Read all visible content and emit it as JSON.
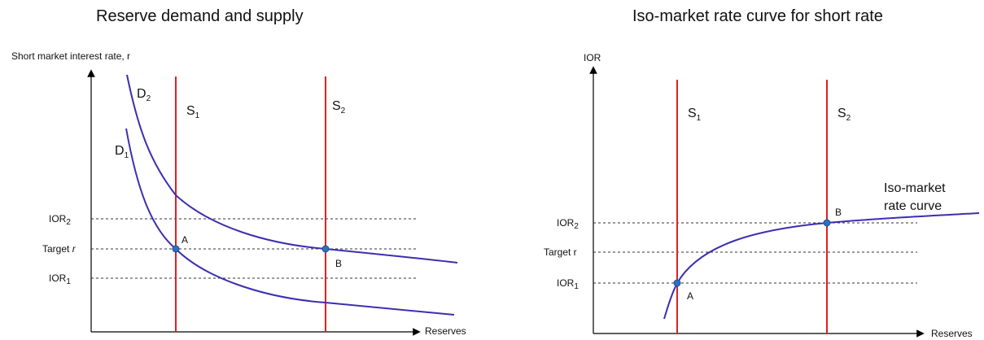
{
  "left": {
    "title": "Reserve demand and supply",
    "y_axis_label": "Short market interest rate, r",
    "x_axis_label": "Reserves",
    "levels": [
      {
        "base": "IOR",
        "sub": "2",
        "plain": ""
      },
      {
        "base": "Target ",
        "sub": "",
        "plain": "r",
        "italic": true
      },
      {
        "base": "IOR",
        "sub": "1",
        "plain": ""
      }
    ],
    "supply": [
      {
        "base": "S",
        "sub": "1"
      },
      {
        "base": "S",
        "sub": "2"
      }
    ],
    "demand": [
      {
        "base": "D",
        "sub": "2"
      },
      {
        "base": "D",
        "sub": "1"
      }
    ],
    "points": [
      "A",
      "B"
    ]
  },
  "right": {
    "title": "Iso-market rate curve for short rate",
    "y_axis_label": "IOR",
    "x_axis_label": "Reserves",
    "levels": [
      {
        "base": "IOR",
        "sub": "2"
      },
      {
        "base": "Target r",
        "sub": ""
      },
      {
        "base": "IOR",
        "sub": "1"
      }
    ],
    "supply": [
      {
        "base": "S",
        "sub": "1"
      },
      {
        "base": "S",
        "sub": "2"
      }
    ],
    "curve_label_line1": "Iso-market",
    "curve_label_line2": "rate curve",
    "points": [
      "A",
      "B"
    ]
  },
  "colors": {
    "supply": "#e02020",
    "curve": "#3a2fb0",
    "point": "#2f6fc0"
  }
}
